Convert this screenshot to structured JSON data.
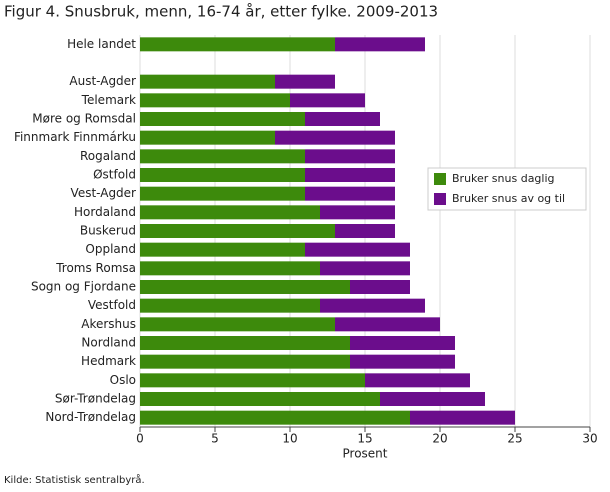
{
  "chart_data": {
    "type": "stacked-barh",
    "title": "Figur 4. Snusbruk, menn, 16-74 år, etter fylke. 2009-2013",
    "xlabel": "Prosent",
    "source": "Kilde: Statistisk sentralbyrå.",
    "categories": [
      "Hele landet",
      null,
      "Aust-Agder",
      "Telemark",
      "Møre og Romsdal",
      "Finnmark Finnmárku",
      "Rogaland",
      "Østfold",
      "Vest-Agder",
      "Hordaland",
      "Buskerud",
      "Oppland",
      "Troms Romsa",
      "Sogn og Fjordane",
      "Vestfold",
      "Akershus",
      "Nordland",
      "Hedmark",
      "Oslo",
      "Sør-Trøndelag",
      "Nord-Trøndelag"
    ],
    "series": [
      {
        "name": "Bruker snus daglig",
        "color": "#3d8a0c",
        "values": [
          13,
          null,
          9,
          10,
          11,
          9,
          11,
          11,
          11,
          12,
          13,
          11,
          12,
          14,
          12,
          13,
          14,
          14,
          15,
          16,
          18
        ]
      },
      {
        "name": "Bruker snus av og til",
        "color": "#6b0d8c",
        "values": [
          6,
          null,
          4,
          5,
          5,
          8,
          6,
          6,
          6,
          5,
          4,
          7,
          6,
          4,
          7,
          7,
          7,
          7,
          7,
          7,
          7
        ]
      }
    ],
    "xlim": [
      0,
      30
    ],
    "xticks": [
      0,
      5,
      10,
      15,
      20,
      25,
      30
    ],
    "grid": true
  }
}
